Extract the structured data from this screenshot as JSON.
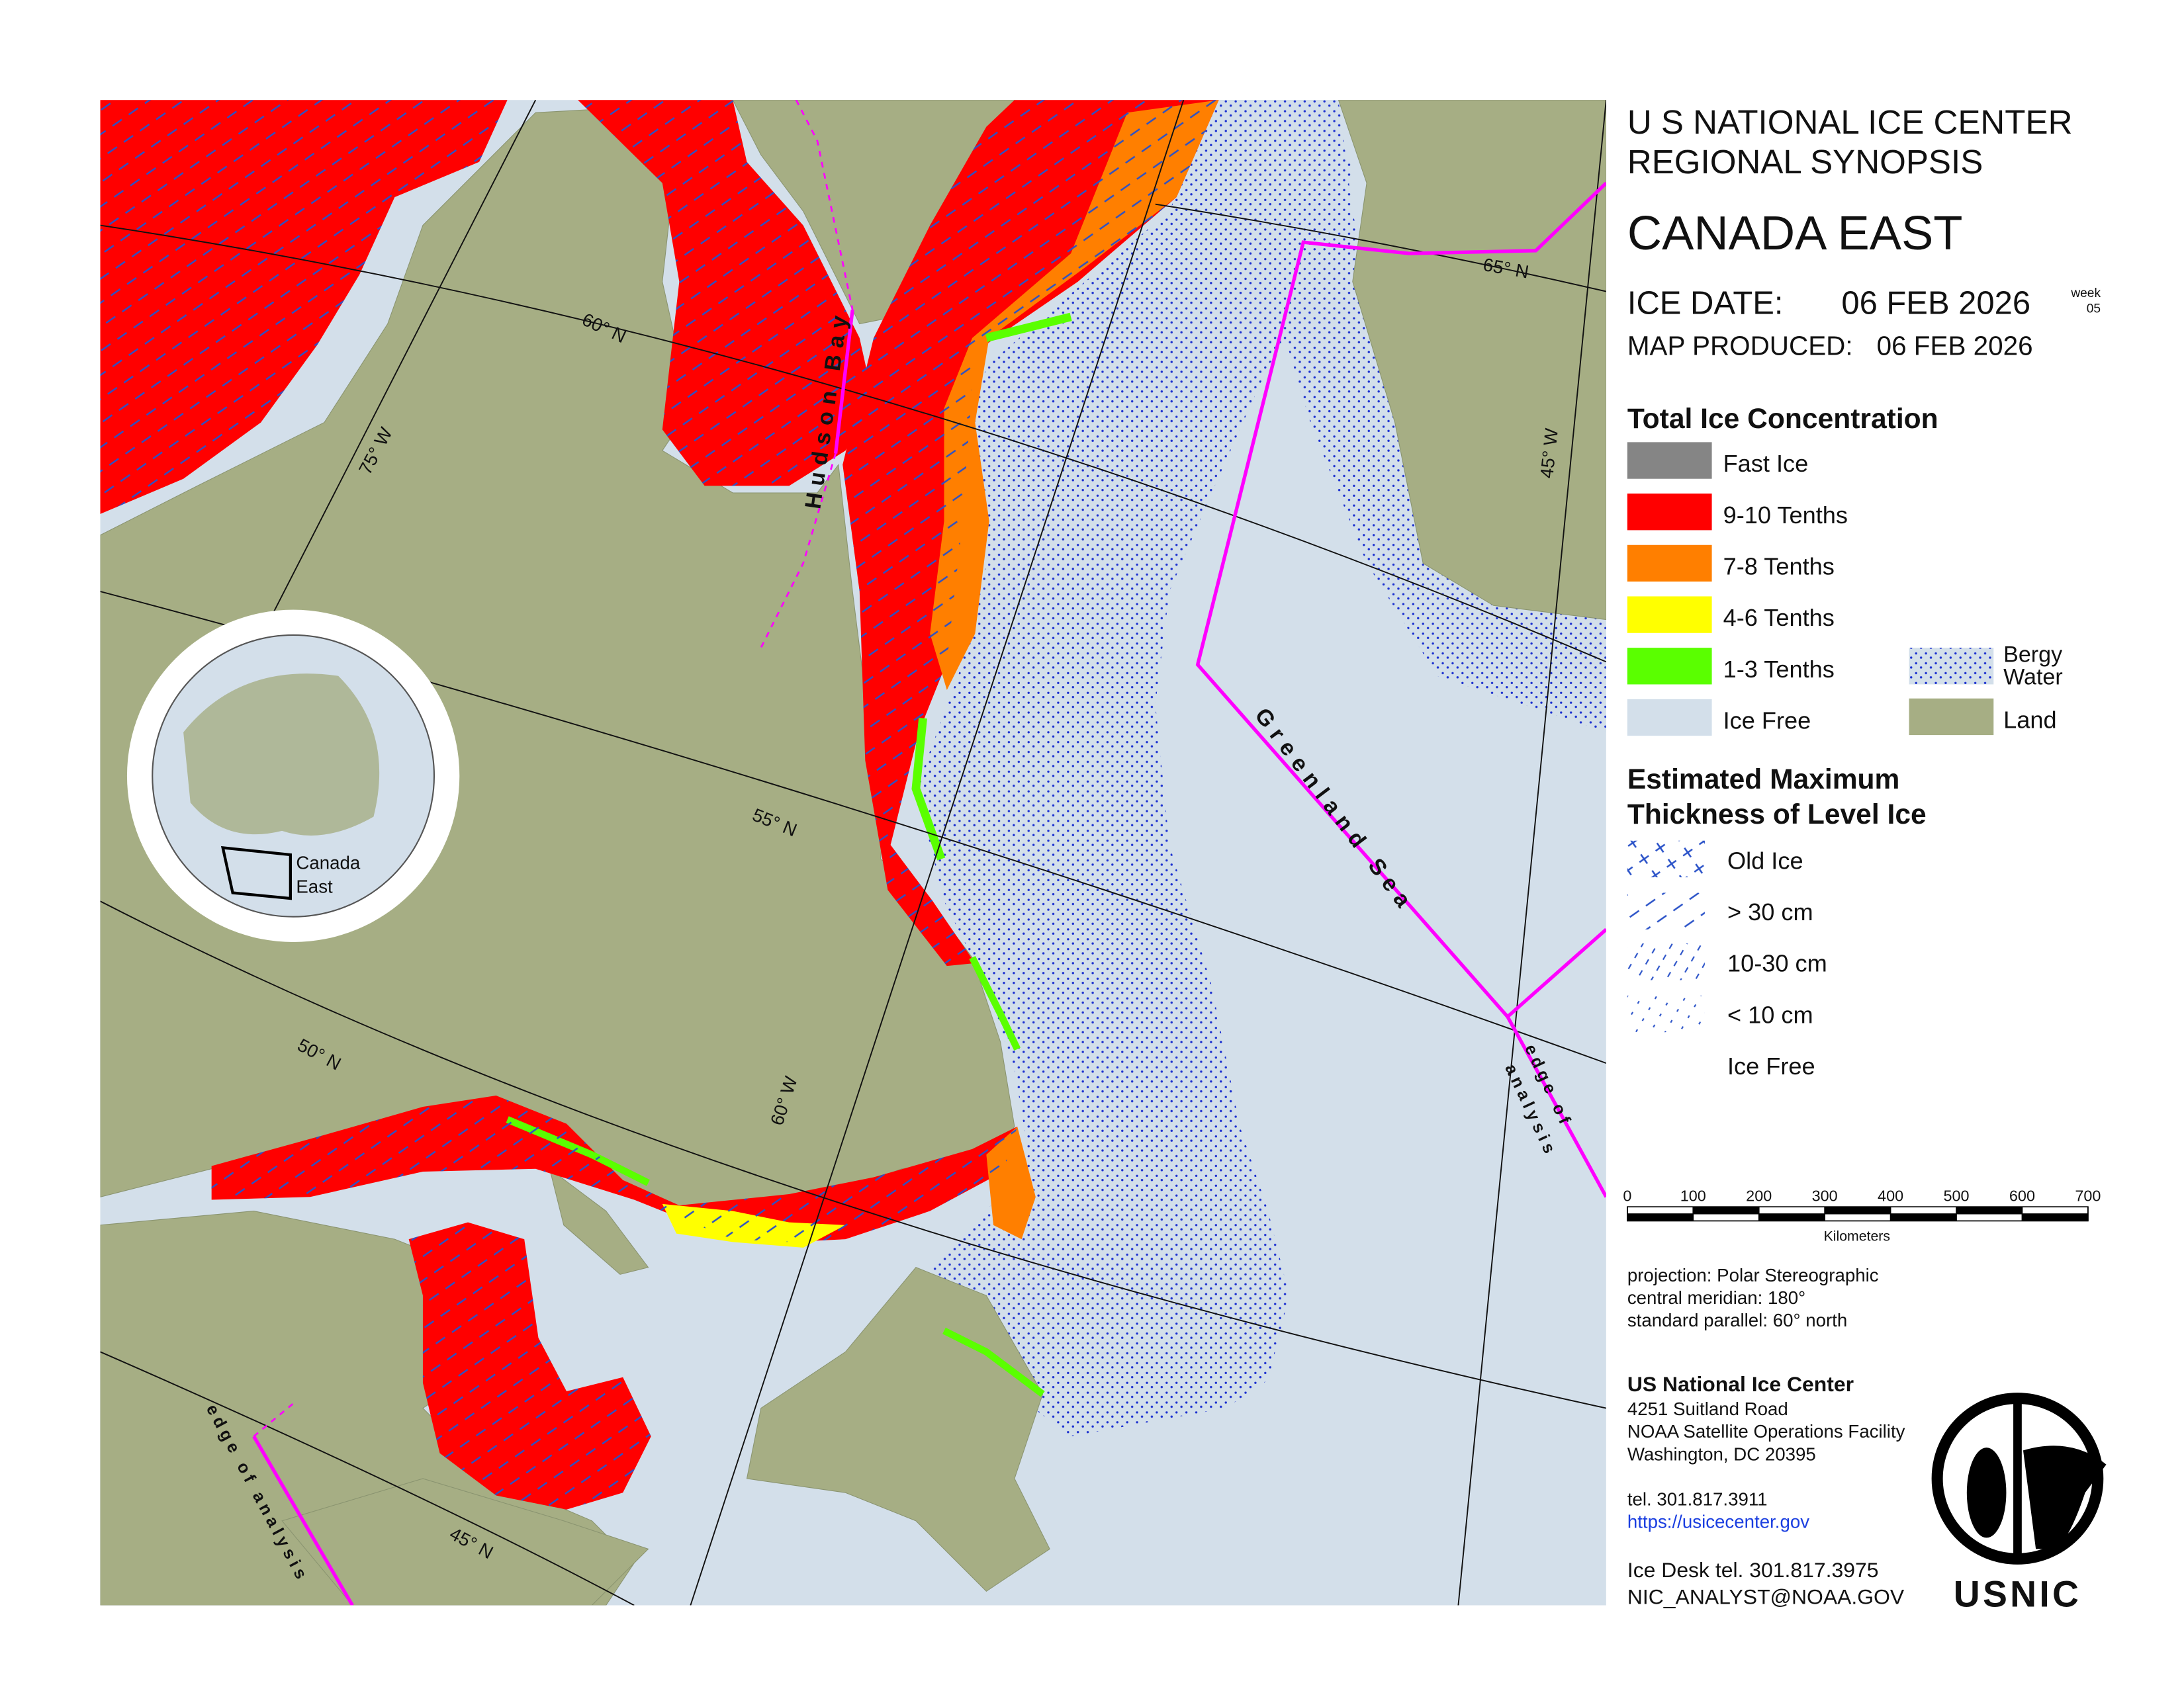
{
  "header": {
    "agency": "U S NATIONAL ICE CENTER",
    "product": "REGIONAL SYNOPSIS",
    "region": "CANADA EAST",
    "ice_date_label": "ICE DATE:",
    "ice_date": "06 FEB 2026",
    "week_label": "week",
    "week": "05",
    "produced_label": "MAP PRODUCED:",
    "produced": "06 FEB 2026"
  },
  "map_labels": {
    "lat_65": "65° N",
    "lat_60": "60° N",
    "lat_55": "55° N",
    "lat_50": "50° N",
    "lat_45": "45° N",
    "lon_75": "75° W",
    "lon_60": "60° W",
    "lon_45": "45° W",
    "hudson_bay": "Hudson Bay",
    "greenland_sea": "Greenland Sea",
    "edge_east_1": "edge of",
    "edge_east_2": "analysis",
    "edge_west": "edge of analysis"
  },
  "inset": {
    "line1": "Canada",
    "line2": "East"
  },
  "concentration_legend": {
    "title": "Total Ice Concentration",
    "items": [
      {
        "label": "Fast Ice",
        "color": "#858585"
      },
      {
        "label": "9-10 Tenths",
        "color": "#ff0000"
      },
      {
        "label": "7-8 Tenths",
        "color": "#ff7f00"
      },
      {
        "label": "4-6 Tenths",
        "color": "#ffff00"
      },
      {
        "label": "1-3 Tenths",
        "color": "#5aff00"
      },
      {
        "label": "Ice Free",
        "color": "#d3dfea"
      }
    ],
    "bergy_1": "Bergy",
    "bergy_2": "Water",
    "land": "Land",
    "land_color": "#a6ae84"
  },
  "thickness_legend": {
    "title_1": "Estimated Maximum",
    "title_2": "Thickness of Level Ice",
    "items": [
      "Old Ice",
      "> 30 cm",
      "10-30 cm",
      "< 10 cm",
      "Ice Free"
    ]
  },
  "scale_bar": {
    "ticks": [
      0,
      100,
      200,
      300,
      400,
      500,
      600,
      700
    ],
    "unit": "Kilometers"
  },
  "projection": [
    "projection: Polar Stereographic",
    "central meridian: 180°",
    "standard parallel:  60° north"
  ],
  "contact": {
    "name": "US National Ice Center",
    "address": [
      "4251 Suitland Road",
      "NOAA Satellite Operations Facility",
      "Washington, DC  20395"
    ],
    "tel": "tel. 301.817.3911",
    "url": "https://usicecenter.gov",
    "desk": "Ice Desk tel. 301.817.3975",
    "email": "NIC_ANALYST@NOAA.GOV"
  },
  "logo": "USNIC"
}
